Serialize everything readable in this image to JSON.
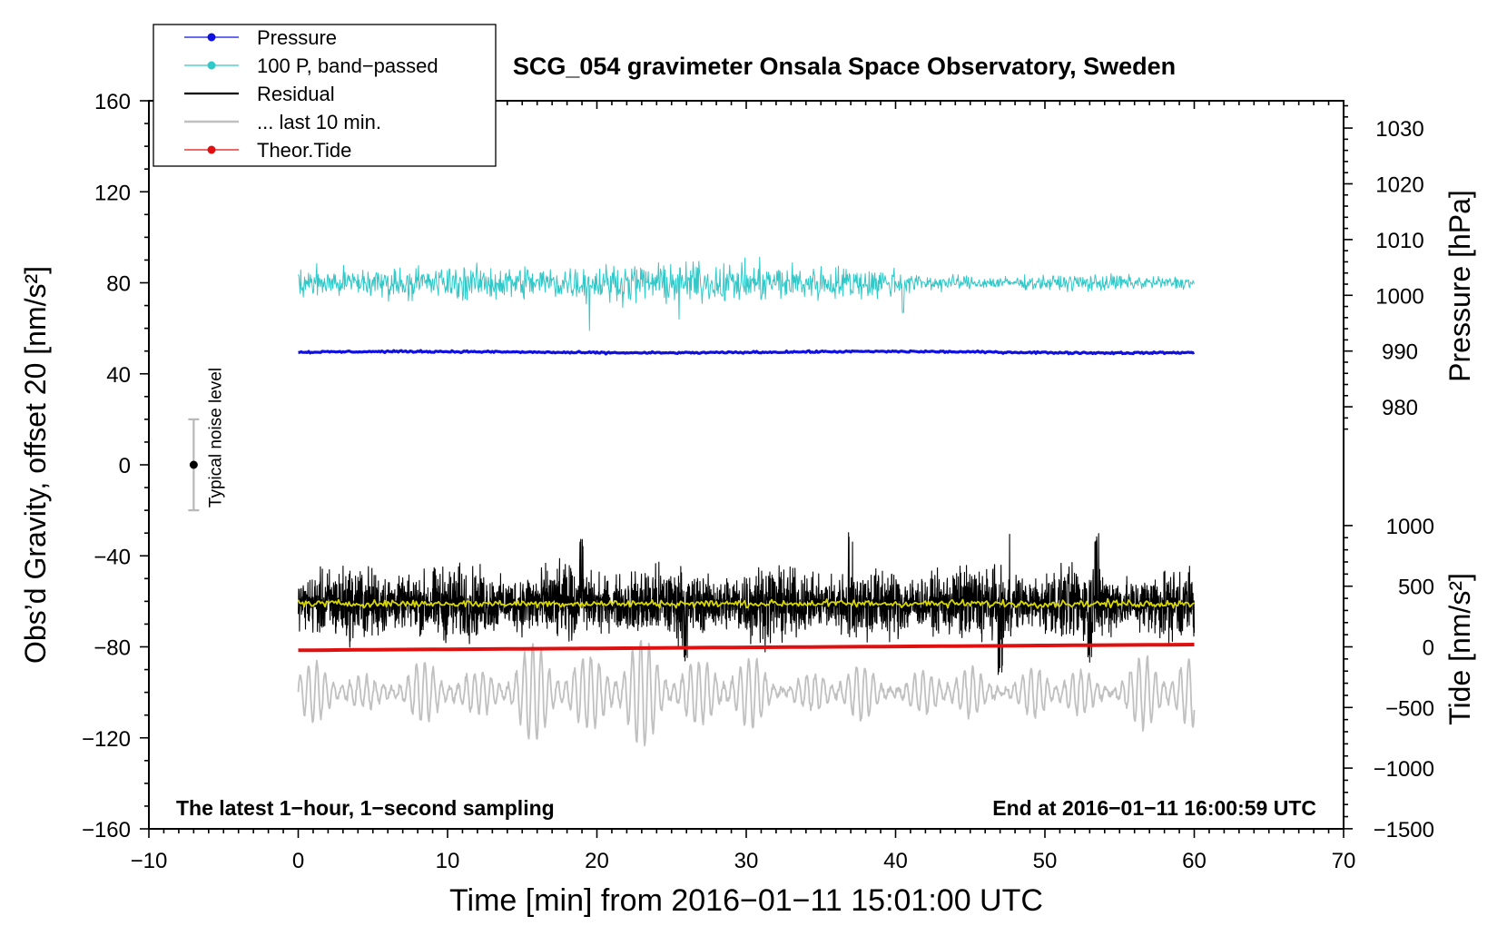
{
  "chart_data": {
    "type": "line",
    "title": "SCG_054 gravimeter Onsala Space Observatory, Sweden",
    "xlabel": "Time [min] from 2016−01−11 15:01:00 UTC",
    "ylabel_left": "Obs’d Gravity, offset 20 [nm/s²]",
    "ylabel_right_top": "Pressure [hPa]",
    "ylabel_right_bottom": "Tide [nm/s²]",
    "xlim": [
      -10,
      70
    ],
    "ylim_left": [
      -160,
      160
    ],
    "x_ticks": [
      "−10",
      "0",
      "10",
      "20",
      "30",
      "40",
      "50",
      "60",
      "70"
    ],
    "x_tick_values": [
      -10,
      0,
      10,
      20,
      30,
      40,
      50,
      60,
      70
    ],
    "y_ticks_left": [
      "160",
      "120",
      "80",
      "40",
      "0",
      "−40",
      "−80",
      "−120",
      "−160"
    ],
    "y_tick_values_left": [
      160,
      120,
      80,
      40,
      0,
      -40,
      -80,
      -120,
      -160
    ],
    "pressure_axis": {
      "ticks": [
        "1030",
        "1020",
        "1010",
        "1000",
        "990",
        "980"
      ],
      "tick_values": [
        1030,
        1020,
        1010,
        1000,
        990,
        980
      ],
      "gravity_equiv_at_1000": 74.5,
      "gravity_per_hpa": 2.45
    },
    "tide_axis": {
      "ticks": [
        "1000",
        "500",
        "0",
        "−500",
        "−1000",
        "−1500"
      ],
      "tick_values": [
        1000,
        500,
        0,
        -500,
        -1000,
        -1500
      ],
      "gravity_equiv_at_0": -80,
      "gravity_per_unit": 0.0533
    },
    "legend": {
      "position": "top-left",
      "entries": [
        {
          "label": "Pressure",
          "color": "#1010e0",
          "style": "line-dot"
        },
        {
          "label": "100 P, band−passed",
          "color": "#30c8c8",
          "style": "line-dot"
        },
        {
          "label": "Residual",
          "color": "#000000",
          "style": "line"
        },
        {
          "label": "... last 10 min.",
          "color": "#c0c0c0",
          "style": "line"
        },
        {
          "label": "Theor.Tide",
          "color": "#e01010",
          "style": "line-dot"
        }
      ]
    },
    "noise_bar": {
      "label": "Typical noise level",
      "x": -7,
      "center": 0,
      "half_range": 20
    },
    "annotations": {
      "left": "The latest 1−hour, 1−second sampling",
      "right": "End at 2016−01−11 16:00:59 UTC"
    },
    "series": [
      {
        "name": "Pressure",
        "color": "#1010e0",
        "x_range": [
          0,
          60
        ],
        "y_level": 49.5,
        "noise": 0.6
      },
      {
        "name": "100 P, band−passed",
        "color": "#30c8c8",
        "x_range": [
          0,
          60
        ],
        "y_level": 80,
        "amp_start": 6,
        "amp_mid": 8,
        "amp_end": 3,
        "spikes": [
          {
            "x": 19.5,
            "y": 59
          },
          {
            "x": 25.5,
            "y": 64
          },
          {
            "x": 40.5,
            "y": 67
          }
        ]
      },
      {
        "name": "Residual",
        "color": "#000000",
        "x_range": [
          0,
          60
        ],
        "y_level": -61,
        "amp": 9,
        "spikes": [
          {
            "x": 19,
            "y": -34
          },
          {
            "x": 26,
            "y": -86
          },
          {
            "x": 37,
            "y": -31
          },
          {
            "x": 47,
            "y": -90
          },
          {
            "x": 47.5,
            "y": -30
          },
          {
            "x": 53,
            "y": -85
          },
          {
            "x": 53.5,
            "y": -33
          }
        ]
      },
      {
        "name": "Residual smoothed",
        "color": "#d8d800",
        "x_range": [
          0,
          60
        ],
        "y_level": -61,
        "noise": 1.2
      },
      {
        "name": "... last 10 min.",
        "color": "#c0c0c0",
        "x_range": [
          0,
          60
        ],
        "y_level": -100,
        "amp": 10,
        "amp_max": 22
      },
      {
        "name": "Theor.Tide",
        "color": "#e01010",
        "x_range": [
          0,
          60
        ],
        "y_start": -81.5,
        "y_end": -79
      }
    ]
  }
}
